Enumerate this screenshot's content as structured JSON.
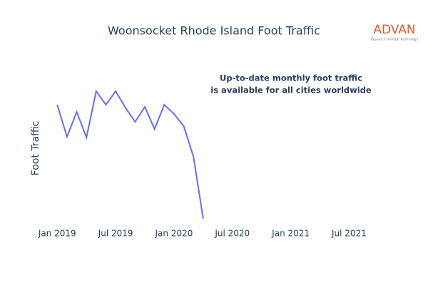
{
  "chart_data": {
    "type": "line",
    "title": "Woonsocket Rhode Island Foot Traffic",
    "y_label": "Foot Traffic",
    "annotation": [
      "Up-to-date monthly foot traffic",
      "is available for all cities worldwide"
    ],
    "logo": {
      "name": "ADVAN",
      "tagline": "Research through Technology"
    },
    "x": [
      "2019-01",
      "2019-02",
      "2019-03",
      "2019-04",
      "2019-05",
      "2019-06",
      "2019-07",
      "2019-08",
      "2019-09",
      "2019-10",
      "2019-11",
      "2019-12",
      "2020-01",
      "2020-02",
      "2020-03",
      "2020-04"
    ],
    "series": [
      {
        "name": "Foot Traffic",
        "color": "#636efa",
        "values": [
          168,
          123,
          158,
          122,
          187,
          168,
          187,
          164,
          144,
          165,
          134,
          168,
          155,
          138,
          95,
          8
        ]
      }
    ],
    "xlim": [
      "2018-11",
      "2021-11"
    ],
    "xticks": [
      {
        "value": "2019-01",
        "label": "Jan 2019"
      },
      {
        "value": "2019-07",
        "label": "Jul 2019"
      },
      {
        "value": "2020-01",
        "label": "Jan 2020"
      },
      {
        "value": "2020-07",
        "label": "Jul 2020"
      },
      {
        "value": "2021-01",
        "label": "Jan 2021"
      },
      {
        "value": "2021-07",
        "label": "Jul 2021"
      }
    ],
    "ylim": [
      0,
      215
    ]
  }
}
